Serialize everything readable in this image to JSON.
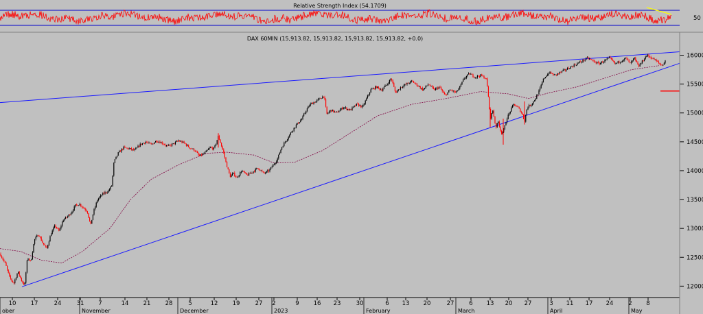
{
  "chart_data": [
    {
      "type": "line",
      "title": "Relative Strength Index (54.1709)",
      "y_ticks": [
        50
      ],
      "bands": [
        70,
        30
      ],
      "ylim": [
        0,
        100
      ],
      "colors": {
        "line": "#ff0000",
        "band": "#0000cc",
        "annotation": "#ffff00"
      }
    },
    {
      "type": "candlestick",
      "title": "DAX 60MIN (15,913.82, 15,913.82, 15,913.82, 15,913.82, +0.0)",
      "ylim": [
        11850,
        16220
      ],
      "y_ticks": [
        12000,
        12500,
        13000,
        13500,
        14000,
        14500,
        15000,
        15500,
        16000
      ],
      "x_day_labels": [
        "10",
        "17",
        "24",
        "31",
        "7",
        "14",
        "21",
        "28",
        "5",
        "12",
        "19",
        "27",
        "2",
        "9",
        "16",
        "23",
        "30",
        "6",
        "13",
        "20",
        "27",
        "6",
        "13",
        "20",
        "27",
        "3",
        "11",
        "17",
        "24",
        "2",
        "8"
      ],
      "x_month_labels": [
        "ober",
        "November",
        "December",
        "2023",
        "February",
        "March",
        "April",
        "May"
      ],
      "path": [
        {
          "x": 0,
          "y": 12560
        },
        {
          "x": 8,
          "y": 12380
        },
        {
          "x": 14,
          "y": 12150
        },
        {
          "x": 20,
          "y": 12050
        },
        {
          "x": 26,
          "y": 12250
        },
        {
          "x": 32,
          "y": 12080
        },
        {
          "x": 36,
          "y": 12020
        },
        {
          "x": 40,
          "y": 12500
        },
        {
          "x": 45,
          "y": 12420
        },
        {
          "x": 50,
          "y": 12800
        },
        {
          "x": 56,
          "y": 12900
        },
        {
          "x": 62,
          "y": 12750
        },
        {
          "x": 68,
          "y": 12650
        },
        {
          "x": 74,
          "y": 12900
        },
        {
          "x": 80,
          "y": 13050
        },
        {
          "x": 86,
          "y": 12950
        },
        {
          "x": 92,
          "y": 13150
        },
        {
          "x": 98,
          "y": 13200
        },
        {
          "x": 104,
          "y": 13280
        },
        {
          "x": 110,
          "y": 13400
        },
        {
          "x": 116,
          "y": 13420
        },
        {
          "x": 122,
          "y": 13350
        },
        {
          "x": 127,
          "y": 13300
        },
        {
          "x": 132,
          "y": 13050
        },
        {
          "x": 136,
          "y": 13280
        },
        {
          "x": 142,
          "y": 13500
        },
        {
          "x": 150,
          "y": 13600
        },
        {
          "x": 158,
          "y": 13650
        },
        {
          "x": 163,
          "y": 13750
        },
        {
          "x": 166,
          "y": 14150
        },
        {
          "x": 172,
          "y": 14300
        },
        {
          "x": 180,
          "y": 14400
        },
        {
          "x": 188,
          "y": 14380
        },
        {
          "x": 196,
          "y": 14350
        },
        {
          "x": 204,
          "y": 14450
        },
        {
          "x": 212,
          "y": 14500
        },
        {
          "x": 220,
          "y": 14450
        },
        {
          "x": 228,
          "y": 14520
        },
        {
          "x": 236,
          "y": 14480
        },
        {
          "x": 244,
          "y": 14420
        },
        {
          "x": 252,
          "y": 14460
        },
        {
          "x": 260,
          "y": 14520
        },
        {
          "x": 268,
          "y": 14480
        },
        {
          "x": 276,
          "y": 14400
        },
        {
          "x": 284,
          "y": 14350
        },
        {
          "x": 290,
          "y": 14250
        },
        {
          "x": 298,
          "y": 14300
        },
        {
          "x": 306,
          "y": 14400
        },
        {
          "x": 312,
          "y": 14380
        },
        {
          "x": 318,
          "y": 14600
        },
        {
          "x": 322,
          "y": 14450
        },
        {
          "x": 326,
          "y": 14300
        },
        {
          "x": 330,
          "y": 14100
        },
        {
          "x": 335,
          "y": 13900
        },
        {
          "x": 340,
          "y": 13950
        },
        {
          "x": 345,
          "y": 13880
        },
        {
          "x": 352,
          "y": 14000
        },
        {
          "x": 360,
          "y": 13920
        },
        {
          "x": 368,
          "y": 13980
        },
        {
          "x": 376,
          "y": 14050
        },
        {
          "x": 384,
          "y": 13950
        },
        {
          "x": 392,
          "y": 14000
        },
        {
          "x": 398,
          "y": 14100
        },
        {
          "x": 404,
          "y": 14200
        },
        {
          "x": 410,
          "y": 14400
        },
        {
          "x": 418,
          "y": 14550
        },
        {
          "x": 426,
          "y": 14700
        },
        {
          "x": 432,
          "y": 14800
        },
        {
          "x": 440,
          "y": 14900
        },
        {
          "x": 446,
          "y": 15050
        },
        {
          "x": 452,
          "y": 15150
        },
        {
          "x": 460,
          "y": 15200
        },
        {
          "x": 466,
          "y": 15250
        },
        {
          "x": 472,
          "y": 15300
        },
        {
          "x": 476,
          "y": 14980
        },
        {
          "x": 482,
          "y": 15050
        },
        {
          "x": 490,
          "y": 15000
        },
        {
          "x": 500,
          "y": 15100
        },
        {
          "x": 510,
          "y": 15050
        },
        {
          "x": 520,
          "y": 15150
        },
        {
          "x": 528,
          "y": 15100
        },
        {
          "x": 534,
          "y": 15250
        },
        {
          "x": 540,
          "y": 15400
        },
        {
          "x": 548,
          "y": 15450
        },
        {
          "x": 556,
          "y": 15400
        },
        {
          "x": 564,
          "y": 15500
        },
        {
          "x": 570,
          "y": 15600
        },
        {
          "x": 576,
          "y": 15350
        },
        {
          "x": 584,
          "y": 15450
        },
        {
          "x": 592,
          "y": 15500
        },
        {
          "x": 600,
          "y": 15550
        },
        {
          "x": 608,
          "y": 15480
        },
        {
          "x": 616,
          "y": 15400
        },
        {
          "x": 624,
          "y": 15500
        },
        {
          "x": 632,
          "y": 15400
        },
        {
          "x": 640,
          "y": 15450
        },
        {
          "x": 648,
          "y": 15300
        },
        {
          "x": 656,
          "y": 15400
        },
        {
          "x": 664,
          "y": 15350
        },
        {
          "x": 670,
          "y": 15450
        },
        {
          "x": 676,
          "y": 15600
        },
        {
          "x": 684,
          "y": 15680
        },
        {
          "x": 692,
          "y": 15620
        },
        {
          "x": 700,
          "y": 15650
        },
        {
          "x": 708,
          "y": 15600
        },
        {
          "x": 711,
          "y": 15350
        },
        {
          "x": 714,
          "y": 14900
        },
        {
          "x": 718,
          "y": 15050
        },
        {
          "x": 722,
          "y": 14750
        },
        {
          "x": 726,
          "y": 14850
        },
        {
          "x": 730,
          "y": 14650
        },
        {
          "x": 734,
          "y": 14700
        },
        {
          "x": 738,
          "y": 14900
        },
        {
          "x": 742,
          "y": 15000
        },
        {
          "x": 748,
          "y": 15150
        },
        {
          "x": 754,
          "y": 15100
        },
        {
          "x": 760,
          "y": 15000
        },
        {
          "x": 764,
          "y": 14850
        },
        {
          "x": 768,
          "y": 15100
        },
        {
          "x": 774,
          "y": 15150
        },
        {
          "x": 780,
          "y": 15250
        },
        {
          "x": 786,
          "y": 15400
        },
        {
          "x": 792,
          "y": 15600
        },
        {
          "x": 800,
          "y": 15700
        },
        {
          "x": 808,
          "y": 15650
        },
        {
          "x": 816,
          "y": 15700
        },
        {
          "x": 824,
          "y": 15750
        },
        {
          "x": 832,
          "y": 15800
        },
        {
          "x": 840,
          "y": 15850
        },
        {
          "x": 848,
          "y": 15900
        },
        {
          "x": 856,
          "y": 15950
        },
        {
          "x": 864,
          "y": 15900
        },
        {
          "x": 872,
          "y": 15850
        },
        {
          "x": 880,
          "y": 15900
        },
        {
          "x": 888,
          "y": 15950
        },
        {
          "x": 896,
          "y": 15850
        },
        {
          "x": 904,
          "y": 15900
        },
        {
          "x": 912,
          "y": 15950
        },
        {
          "x": 918,
          "y": 15850
        },
        {
          "x": 924,
          "y": 15950
        },
        {
          "x": 930,
          "y": 15800
        },
        {
          "x": 936,
          "y": 15900
        },
        {
          "x": 942,
          "y": 16000
        },
        {
          "x": 950,
          "y": 15950
        },
        {
          "x": 958,
          "y": 15880
        },
        {
          "x": 964,
          "y": 15820
        },
        {
          "x": 970,
          "y": 15913.82
        }
      ],
      "spikes": [
        {
          "x": 318,
          "from": 14400,
          "to": 14650
        },
        {
          "x": 714,
          "from": 15100,
          "to": 14750
        },
        {
          "x": 733,
          "from": 14900,
          "to": 14450
        },
        {
          "x": 764,
          "from": 15200,
          "to": 14800
        }
      ],
      "moving_average": [
        {
          "x": 0,
          "y": 12650
        },
        {
          "x": 30,
          "y": 12600
        },
        {
          "x": 60,
          "y": 12450
        },
        {
          "x": 90,
          "y": 12400
        },
        {
          "x": 120,
          "y": 12600
        },
        {
          "x": 160,
          "y": 13000
        },
        {
          "x": 190,
          "y": 13500
        },
        {
          "x": 220,
          "y": 13850
        },
        {
          "x": 260,
          "y": 14100
        },
        {
          "x": 300,
          "y": 14300
        },
        {
          "x": 330,
          "y": 14320
        },
        {
          "x": 370,
          "y": 14270
        },
        {
          "x": 400,
          "y": 14130
        },
        {
          "x": 430,
          "y": 14150
        },
        {
          "x": 470,
          "y": 14350
        },
        {
          "x": 510,
          "y": 14650
        },
        {
          "x": 550,
          "y": 14950
        },
        {
          "x": 600,
          "y": 15150
        },
        {
          "x": 650,
          "y": 15250
        },
        {
          "x": 700,
          "y": 15370
        },
        {
          "x": 740,
          "y": 15330
        },
        {
          "x": 770,
          "y": 15250
        },
        {
          "x": 800,
          "y": 15350
        },
        {
          "x": 840,
          "y": 15450
        },
        {
          "x": 880,
          "y": 15600
        },
        {
          "x": 920,
          "y": 15750
        },
        {
          "x": 960,
          "y": 15820
        }
      ],
      "trendlines": [
        {
          "x1": 0,
          "y1": 15180,
          "x2": 990,
          "y2": 16060
        },
        {
          "x1": 32,
          "y1": 11990,
          "x2": 990,
          "y2": 15860
        }
      ],
      "marker": {
        "x1": 962,
        "x2": 990,
        "y": 15380
      },
      "colors": {
        "trend": "#1a1aff",
        "candle_up": "#000000",
        "candle_down": "#ff0000",
        "average": "#800040",
        "marker": "#ff0000"
      }
    }
  ]
}
